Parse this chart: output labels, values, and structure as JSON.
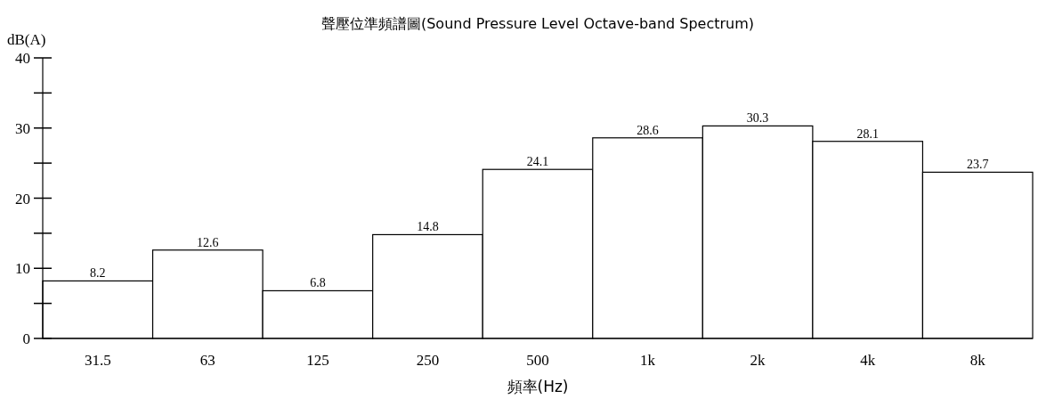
{
  "chart_data": {
    "type": "bar",
    "title": "聲壓位準頻譜圖(Sound Pressure Level Octave-band Spectrum)",
    "ylabel": "dB(A)",
    "xlabel": "頻率(Hz)",
    "categories": [
      "31.5",
      "63",
      "125",
      "250",
      "500",
      "1k",
      "2k",
      "4k",
      "8k"
    ],
    "values": [
      8.2,
      12.6,
      6.8,
      14.8,
      24.1,
      28.6,
      30.3,
      28.1,
      23.7
    ],
    "color": "#ffffff",
    "ylim": [
      0,
      40
    ],
    "yticks": [
      0,
      {
        "value": 5,
        "label": null
      },
      10,
      {
        "value": 15,
        "label": null
      },
      20,
      {
        "value": 25,
        "label": null
      },
      30,
      {
        "value": 35,
        "label": null
      },
      40
    ],
    "data_labels": true
  }
}
